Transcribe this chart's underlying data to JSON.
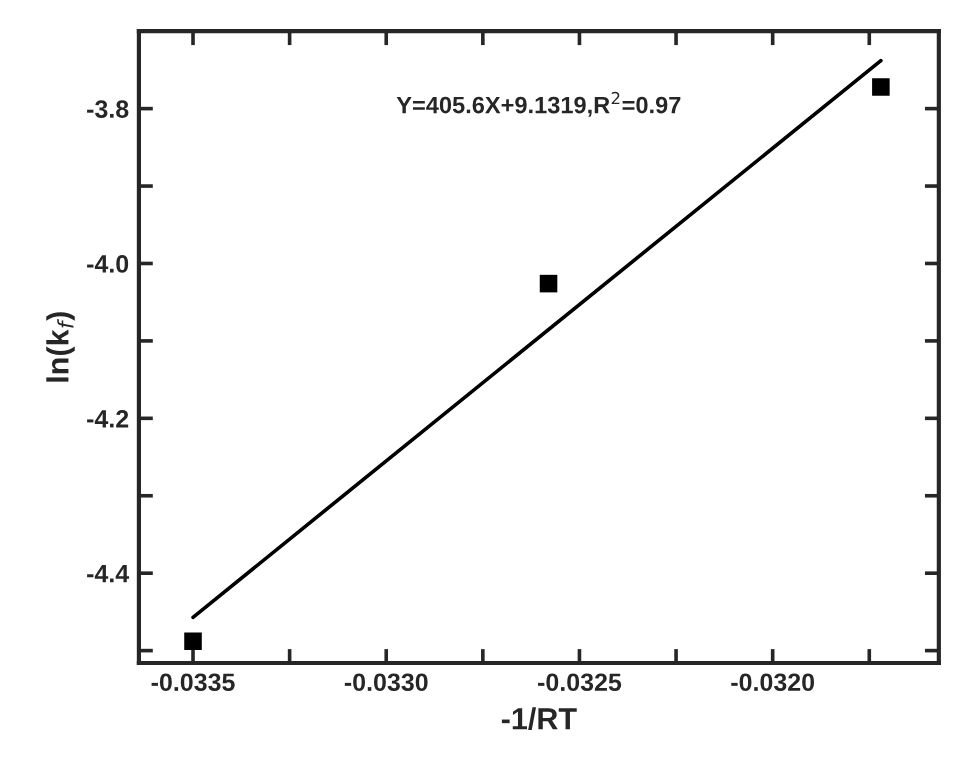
{
  "chart_data": {
    "type": "scatter",
    "xlabel": "-1/RT",
    "ylabel": "ln(k$_{f}$)",
    "annotations": [
      "Y=405.6X+9.1319,R$^{2}$=0.97"
    ],
    "grid": false,
    "legend": false,
    "series": [
      {
        "marker": "square",
        "color": "#000000",
        "x": [
          -0.0335,
          -0.03258,
          -0.03172
        ],
        "values": [
          -4.488,
          -4.026,
          -3.772
        ]
      },
      {
        "type": "line",
        "marker": "none",
        "color": "#000000",
        "x": [
          -0.0335,
          -0.03172
        ],
        "values": [
          -4.457,
          -3.738
        ]
      }
    ],
    "xlim": [
      -0.03364,
      -0.03157
    ],
    "ylim": [
      -4.516,
      -3.7
    ],
    "xticks": [
      -0.0335,
      {
        "value": -0.03325,
        "label": null
      },
      {
        "value": -0.033,
        "label": "-0.0330"
      },
      {
        "value": -0.03275,
        "label": null
      },
      -0.0325,
      {
        "value": -0.03225,
        "label": null
      },
      {
        "value": -0.032,
        "label": "-0.0320"
      },
      {
        "value": -0.03175,
        "label": null
      }
    ],
    "yticks": [
      {
        "value": -4.5,
        "label": null
      },
      -4.4,
      {
        "value": -4.3,
        "label": null
      },
      -4.2,
      {
        "value": -4.1,
        "label": null
      },
      {
        "value": -4.0,
        "label": "-4.0"
      },
      {
        "value": -3.9,
        "label": null
      },
      -3.8,
      {
        "value": -3.7,
        "label": null
      }
    ]
  }
}
